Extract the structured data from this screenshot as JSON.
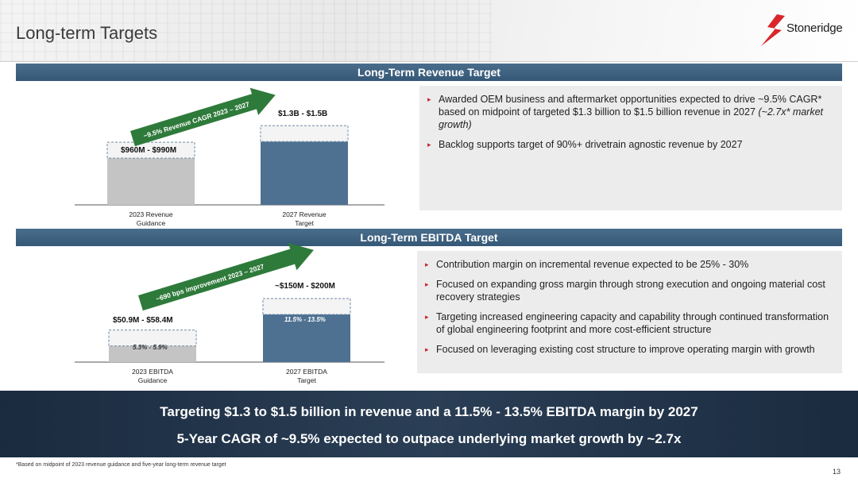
{
  "page": {
    "title": "Long-term Targets",
    "number": "13"
  },
  "logo": {
    "text": "Stoneridge"
  },
  "revenue_section": {
    "heading": "Long-Term Revenue Target",
    "arrow_label": "~9.5% Revenue CAGR 2023 – 2027",
    "bars": [
      {
        "category": "2023 Revenue Guidance",
        "cat_line1": "2023 Revenue",
        "cat_line2": "Guidance",
        "value_label": "$960M - $990M",
        "low": 960,
        "high": 990,
        "color": "#c4c4c4"
      },
      {
        "category": "2027 Revenue Target",
        "cat_line1": "2027 Revenue",
        "cat_line2": "Target",
        "value_label": "$1.3B - $1.5B",
        "low": 1300,
        "high": 1500,
        "color": "#4e7192"
      }
    ],
    "bullets": [
      {
        "text": "Awarded OEM business and aftermarket opportunities expected to drive ~9.5% CAGR* based on midpoint of targeted $1.3 billion to $1.5 billion revenue in 2027",
        "italic": "(~2.7x* market growth)"
      },
      {
        "text": "Backlog supports target of 90%+ drivetrain agnostic revenue by 2027"
      }
    ]
  },
  "ebitda_section": {
    "heading": "Long-Term EBITDA Target",
    "arrow_label": "~690 bps improvement 2023 – 2027",
    "bars": [
      {
        "category": "2023 EBITDA Guidance",
        "cat_line1": "2023 EBITDA",
        "cat_line2": "Guidance",
        "value_label": "$50.9M - $58.4M",
        "margin_label": "5.3% - 5.9%",
        "low": 50.9,
        "high": 58.4,
        "color": "#c4c4c4"
      },
      {
        "category": "2027 EBITDA Target",
        "cat_line1": "2027 EBITDA",
        "cat_line2": "Target",
        "value_label": "~$150M - $200M",
        "margin_label": "11.5% - 13.5%",
        "low": 150,
        "high": 200,
        "color": "#4e7192"
      }
    ],
    "bullets": [
      {
        "text": "Contribution margin on incremental revenue expected to be 25% - 30%"
      },
      {
        "text": "Focused on expanding gross margin through strong execution and ongoing material cost recovery strategies"
      },
      {
        "text": "Targeting increased engineering capacity and capability through continued transformation of global engineering footprint and more cost-efficient structure"
      },
      {
        "text": "Focused on leveraging existing cost structure to improve operating margin with growth"
      }
    ]
  },
  "banner": {
    "line1": "Targeting $1.3 to $1.5 billion in revenue and a 11.5% - 13.5% EBITDA margin by 2027",
    "line2": "5-Year CAGR of ~9.5% expected to outpace underlying market growth by ~2.7x"
  },
  "footnote": "*Based on midpoint of 2023 revenue guidance and five-year long-term revenue target",
  "colors": {
    "section_bar": "#3f6382",
    "bullet_marker": "#c8262c",
    "arrow": "#2e7a3a",
    "banner": "#1f3247"
  },
  "chart_data": [
    {
      "type": "bar",
      "categories": [
        "2023 Revenue Guidance",
        "2027 Revenue Target"
      ],
      "series": [
        {
          "name": "",
          "values": [
            960,
            1300
          ]
        },
        {
          "name": "",
          "values": [
            990,
            1500
          ]
        }
      ],
      "value_labels": [
        "$960M - $990M",
        "$1.3B - $1.5B"
      ],
      "annotation": "~9.5% Revenue CAGR 2023 – 2027",
      "units": "$M"
    },
    {
      "type": "bar",
      "categories": [
        "2023 EBITDA Guidance",
        "2027 EBITDA Target"
      ],
      "series": [
        {
          "name": "",
          "values": [
            50.9,
            150
          ]
        },
        {
          "name": "",
          "values": [
            58.4,
            200
          ]
        }
      ],
      "value_labels": [
        "$50.9M - $58.4M",
        "~$150M - $200M"
      ],
      "margin_labels": [
        "5.3% - 5.9%",
        "11.5% - 13.5%"
      ],
      "annotation": "~690 bps improvement 2023 – 2027",
      "units": "$M"
    }
  ]
}
